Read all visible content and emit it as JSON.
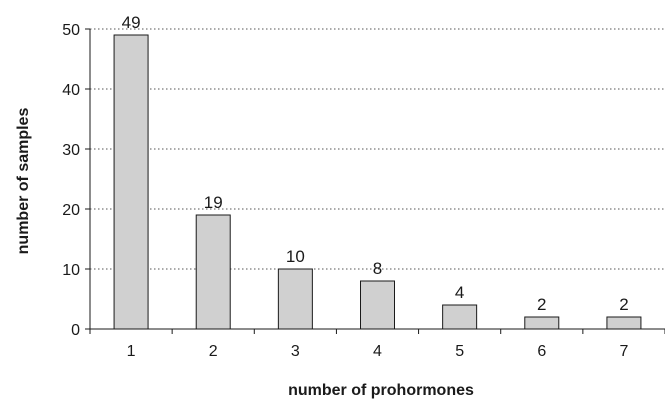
{
  "chart_data": {
    "type": "bar",
    "title": "",
    "xlabel": "number of prohormones",
    "ylabel": "number of samples",
    "categories": [
      "1",
      "2",
      "3",
      "4",
      "5",
      "6",
      "7"
    ],
    "values": [
      49,
      19,
      10,
      8,
      4,
      2,
      2
    ],
    "data_labels": [
      "49",
      "19",
      "10",
      "8",
      "4",
      "2",
      "2"
    ],
    "ylim": [
      0,
      50
    ],
    "yticks": [
      0,
      10,
      20,
      30,
      40,
      50
    ],
    "ytick_labels": [
      "0",
      "10",
      "20",
      "30",
      "40",
      "50"
    ],
    "grid": "horizontal dotted",
    "legend": "none",
    "colors": {
      "bar_fill": "#d0d0d0",
      "bar_stroke": "#1a1a1a",
      "axis": "#1a1a1a",
      "grid": "#555555"
    }
  }
}
